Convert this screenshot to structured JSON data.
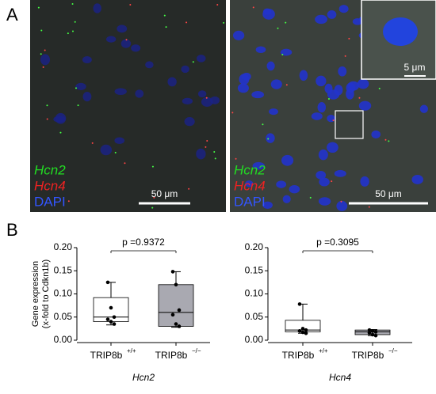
{
  "panel_a": {
    "label": "A",
    "images": [
      {
        "channels": [
          "Hcn2",
          "Hcn4",
          "DAPI"
        ],
        "scale_bar": "50 μm"
      },
      {
        "channels": [
          "Hcn2",
          "Hcn4",
          "DAPI"
        ],
        "scale_bar": "50 μm",
        "inset_scale_bar": "5 μm"
      }
    ],
    "channel_colors": [
      "#22dd22",
      "#ee2222",
      "#3355ff"
    ]
  },
  "panel_b": {
    "label": "B"
  },
  "chart_data": [
    {
      "type": "box",
      "xlabel": "Hcn2",
      "ylabel": [
        "Gene expression",
        "(x-fold to Cdkn1b)"
      ],
      "annotation": "p =0.9372",
      "categories": [
        "TRIP8b",
        "TRIP8b"
      ],
      "category_superscripts": [
        "+/+",
        "−/−"
      ],
      "boxes": [
        {
          "color": "#ffffff",
          "min": 0.033,
          "q1": 0.04,
          "median": 0.05,
          "q3": 0.092,
          "max": 0.125,
          "points": [
            0.125,
            0.07,
            0.05,
            0.045,
            0.04,
            0.035
          ]
        },
        {
          "color": "#a9a9b1",
          "min": 0.028,
          "q1": 0.03,
          "median": 0.06,
          "q3": 0.12,
          "max": 0.148,
          "points": [
            0.148,
            0.12,
            0.065,
            0.055,
            0.035,
            0.03
          ]
        }
      ],
      "ylim": [
        0,
        0.2
      ],
      "yticks": [
        {
          "value": 0,
          "label": "0.00"
        },
        {
          "value": 0.05,
          "label": "0.05"
        },
        {
          "value": 0.1,
          "label": "0.10"
        },
        {
          "value": 0.15,
          "label": "0.15"
        },
        {
          "value": 0.2,
          "label": "0.20"
        }
      ]
    },
    {
      "type": "box",
      "xlabel": "Hcn4",
      "annotation": "p =0.3095",
      "categories": [
        "TRIP8b",
        "TRIP8b"
      ],
      "category_superscripts": [
        "+/+",
        "−/−"
      ],
      "boxes": [
        {
          "color": "#ffffff",
          "min": 0.015,
          "q1": 0.018,
          "median": 0.022,
          "q3": 0.043,
          "max": 0.078,
          "points": [
            0.078,
            0.025,
            0.022,
            0.02,
            0.017,
            0.015
          ]
        },
        {
          "color": "#a9a9b1",
          "min": 0.01,
          "q1": 0.012,
          "median": 0.018,
          "q3": 0.022,
          "max": 0.023,
          "points": [
            0.022,
            0.02,
            0.018,
            0.016,
            0.012,
            0.01
          ]
        }
      ],
      "ylim": [
        0,
        0.2
      ],
      "yticks": [
        {
          "value": 0,
          "label": "0.00"
        },
        {
          "value": 0.05,
          "label": "0.05"
        },
        {
          "value": 0.1,
          "label": "0.10"
        },
        {
          "value": 0.15,
          "label": "0.15"
        },
        {
          "value": 0.2,
          "label": "0.20"
        }
      ]
    }
  ]
}
